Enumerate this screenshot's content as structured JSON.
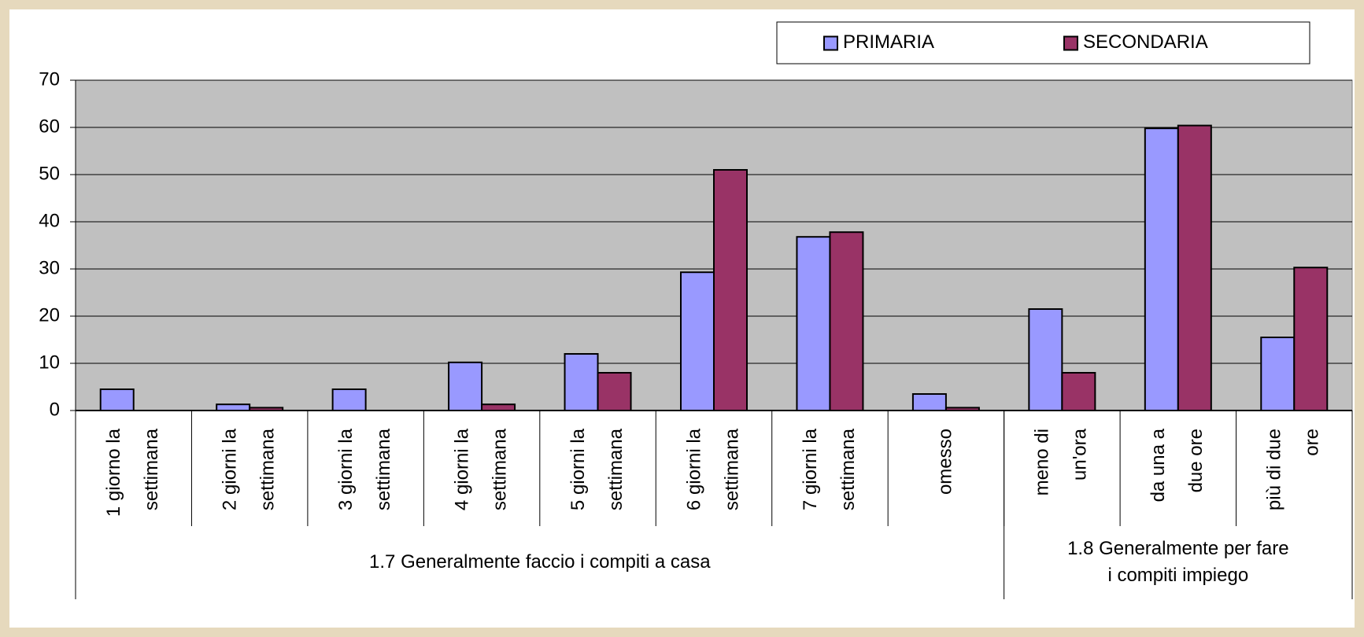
{
  "chart_data": {
    "type": "bar",
    "categories": [
      [
        "1 giorno la",
        "settimana"
      ],
      [
        "2 giorni la",
        "settimana"
      ],
      [
        "3 giorni la",
        "settimana"
      ],
      [
        "4 giorni la",
        "settimana"
      ],
      [
        "5 giorni la",
        "settimana"
      ],
      [
        "6 giorni la",
        "settimana"
      ],
      [
        "7 giorni la",
        "settimana"
      ],
      [
        "omesso"
      ],
      [
        "meno di",
        "un'ora"
      ],
      [
        "da una a",
        "due ore"
      ],
      [
        "più di due",
        "ore"
      ]
    ],
    "groups": [
      {
        "label": [
          "1.7 Generalmente faccio i compiti a casa"
        ],
        "count": 8
      },
      {
        "label": [
          "1.8 Generalmente per fare",
          "i compiti impiego"
        ],
        "count": 3
      }
    ],
    "series": [
      {
        "name": "PRIMARIA",
        "color": "#9999ff",
        "values": [
          4.5,
          1.3,
          4.5,
          10.2,
          12,
          29.3,
          36.8,
          3.5,
          21.5,
          59.8,
          15.5
        ]
      },
      {
        "name": "SECONDARIA",
        "color": "#993366",
        "values": [
          0,
          0.6,
          0,
          1.3,
          8,
          51,
          37.8,
          0.6,
          8,
          60.4,
          30.3
        ]
      }
    ],
    "ylim": [
      0,
      70
    ],
    "yticks": [
      0,
      10,
      20,
      30,
      40,
      50,
      60,
      70
    ],
    "grid": true,
    "legend": "top-right"
  }
}
